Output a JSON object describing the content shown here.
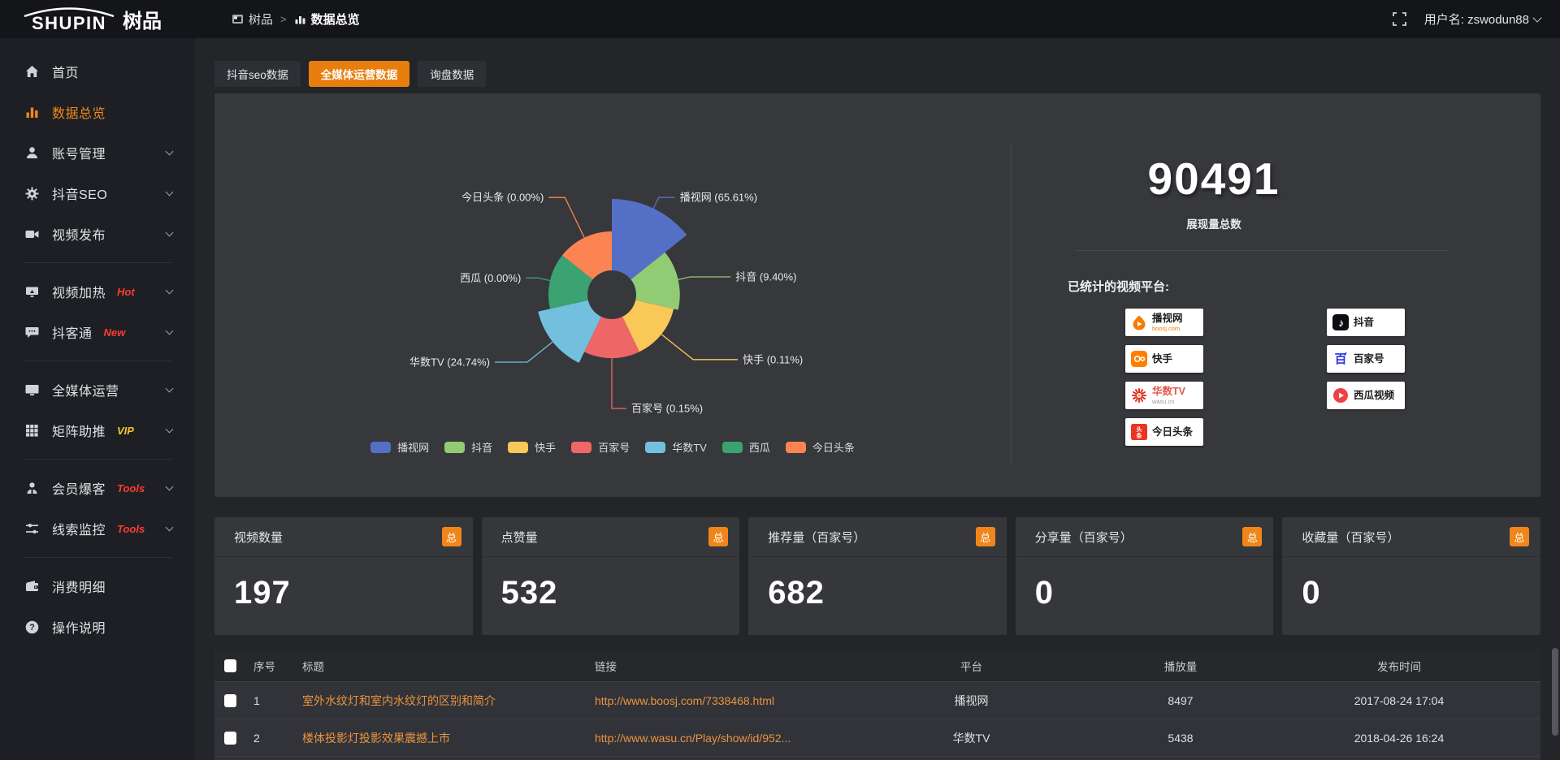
{
  "topbar": {
    "logo_en": "SHUPIN",
    "logo_cn": "树品",
    "breadcrumb_root": "树品",
    "breadcrumb_sep": ">",
    "breadcrumb_current": "数据总览",
    "username": "用户名: zswodun88"
  },
  "sidebar": {
    "items": [
      {
        "icon": "home-icon",
        "label": "首页"
      },
      {
        "icon": "chart-icon",
        "label": "数据总览",
        "active": true
      },
      {
        "icon": "user-icon",
        "label": "账号管理",
        "chevron": true
      },
      {
        "icon": "gear-icon",
        "label": "抖音SEO",
        "chevron": true
      },
      {
        "icon": "video-icon",
        "label": "视频发布",
        "chevron": true
      },
      {
        "divider": true
      },
      {
        "icon": "heat-icon",
        "label": "视频加热",
        "badge": "Hot",
        "badge_color": "#ff3b30",
        "chevron": true
      },
      {
        "icon": "chat-icon",
        "label": "抖客通",
        "badge": "New",
        "badge_color": "#ff3b30",
        "chevron": true
      },
      {
        "divider": true
      },
      {
        "icon": "monitor-icon",
        "label": "全媒体运营",
        "chevron": true
      },
      {
        "icon": "grid-icon",
        "label": "矩阵助推",
        "badge": "VIP",
        "badge_color": "#f5c52c",
        "chevron": true
      },
      {
        "divider": true
      },
      {
        "icon": "member-icon",
        "label": "会员爆客",
        "badge": "Tools",
        "badge_color": "#ff3b30",
        "chevron": true
      },
      {
        "icon": "sliders-icon",
        "label": "线索监控",
        "badge": "Tools",
        "badge_color": "#ff3b30",
        "chevron": true
      },
      {
        "divider": true
      },
      {
        "icon": "wallet-icon",
        "label": "消费明细"
      },
      {
        "icon": "help-icon",
        "label": "操作说明"
      }
    ]
  },
  "tabs": [
    {
      "label": "抖音seo数据",
      "active": false
    },
    {
      "label": "全媒体运营数据",
      "active": true
    },
    {
      "label": "询盘数据",
      "active": false
    }
  ],
  "chart_data": {
    "type": "pie",
    "subtype": "nightingale-rose",
    "labels": [
      "播视网",
      "抖音",
      "快手",
      "百家号",
      "华数TV",
      "西瓜",
      "今日头条"
    ],
    "values_percent": [
      65.61,
      9.4,
      0.11,
      0.15,
      24.74,
      0,
      0
    ],
    "colors": [
      "#5470c6",
      "#91cc75",
      "#fac858",
      "#ee6666",
      "#73c0de",
      "#3ba272",
      "#fc8452"
    ],
    "label_format": "{name} ({value}%)",
    "legend_position": "bottom",
    "legend": [
      "播视网",
      "抖音",
      "快手",
      "百家号",
      "华数TV",
      "西瓜",
      "今日头条"
    ]
  },
  "summary": {
    "total_value": "90491",
    "total_label": "展现量总数",
    "platforms_title": "已统计的视频平台:",
    "chips_left": [
      {
        "icon": "boosj-icon",
        "name": "播视网",
        "name_color": "#1b1b1b",
        "sub": "boosj.com",
        "sub_color": "#f57c00"
      },
      {
        "icon": "kuaishou-icon",
        "name": "快手",
        "name_color": "#1b1b1b",
        "sub": "",
        "sub_color": ""
      },
      {
        "icon": "wasu-icon",
        "name": "华数TV",
        "name_color": "#e2574c",
        "sub": "wasu.cn",
        "sub_color": "#999999"
      },
      {
        "icon": "toutiao-icon",
        "name": "今日头条",
        "name_color": "#1b1b1b",
        "sub": "",
        "sub_color": ""
      }
    ],
    "chips_right": [
      {
        "icon": "douyin-icon",
        "name": "抖音",
        "name_color": "#1b1b1b",
        "sub": "",
        "sub_color": ""
      },
      {
        "icon": "baijiahao-icon",
        "name": "百家号",
        "name_color": "#1b1b1b",
        "sub": "",
        "sub_color": ""
      },
      {
        "icon": "xigua-icon",
        "name": "西瓜视频",
        "name_color": "#1b1b1b",
        "sub": "",
        "sub_color": ""
      }
    ]
  },
  "stat_cards": [
    {
      "title": "视频数量",
      "badge": "总",
      "value": "197"
    },
    {
      "title": "点赞量",
      "badge": "总",
      "value": "532"
    },
    {
      "title": "推荐量（百家号）",
      "badge": "总",
      "value": "682"
    },
    {
      "title": "分享量（百家号）",
      "badge": "总",
      "value": "0"
    },
    {
      "title": "收藏量（百家号）",
      "badge": "总",
      "value": "0"
    }
  ],
  "table": {
    "headers": [
      "序号",
      "标题",
      "链接",
      "平台",
      "播放量",
      "发布时间"
    ],
    "rows": [
      {
        "no": "1",
        "title": "室外水纹灯和室内水纹灯的区别和简介",
        "link": "http://www.boosj.com/7338468.html",
        "platform": "播视网",
        "plays": "8497",
        "time": "2017-08-24 17:04"
      },
      {
        "no": "2",
        "title": "楼体投影灯投影效果震撼上市",
        "link": "http://www.wasu.cn/Play/show/id/952...",
        "platform": "华数TV",
        "plays": "5438",
        "time": "2018-04-26 16:24"
      }
    ]
  },
  "colors": {
    "accent_orange": "#e87e0e",
    "badge_orange": "#f0861a",
    "link_orange": "#ea9440"
  }
}
